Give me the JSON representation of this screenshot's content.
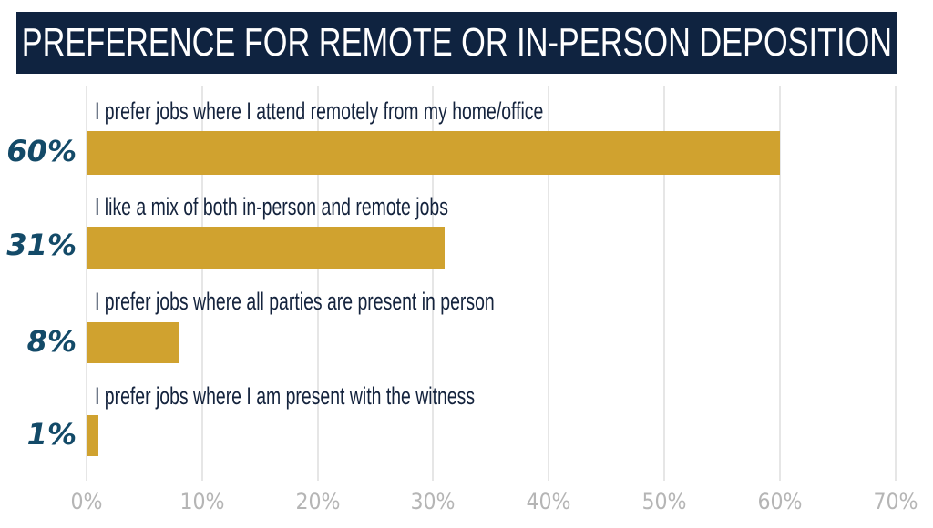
{
  "title": "PREFERENCE FOR REMOTE OR IN-PERSON DEPOSITION",
  "colors": {
    "title_bg": "#0f2340",
    "bar": "#d0a22f",
    "value_label": "#134a68",
    "category_label": "#14233d",
    "tick_label": "#b5b5b5",
    "grid": "#e6e6e6"
  },
  "axis": {
    "ticks": [
      "0%",
      "10%",
      "20%",
      "30%",
      "40%",
      "50%",
      "60%",
      "70%"
    ]
  },
  "bars": [
    {
      "label": "I prefer jobs where I attend remotely from my home/office",
      "value": 60,
      "display": "60%"
    },
    {
      "label": "I like a mix of both in-person and remote jobs",
      "value": 31,
      "display": "31%"
    },
    {
      "label": "I prefer jobs where all parties are present in person",
      "value": 8,
      "display": "8%"
    },
    {
      "label": "I prefer jobs where I am present with the witness",
      "value": 1,
      "display": "1%"
    }
  ],
  "chart_data": {
    "type": "bar",
    "orientation": "horizontal",
    "title": "PREFERENCE FOR REMOTE OR IN-PERSON DEPOSITION",
    "categories": [
      "I prefer jobs where I attend remotely from my home/office",
      "I like a mix of both in-person and remote jobs",
      "I prefer jobs where all parties are present in person",
      "I prefer jobs where I am present with the witness"
    ],
    "values": [
      60,
      31,
      8,
      1
    ],
    "data_labels": [
      "60%",
      "31%",
      "8%",
      "1%"
    ],
    "xlabel": "",
    "ylabel": "",
    "xlim": [
      0,
      70
    ],
    "x_ticks": [
      "0%",
      "10%",
      "20%",
      "30%",
      "40%",
      "50%",
      "60%",
      "70%"
    ],
    "grid": "vertical",
    "legend": "none"
  }
}
